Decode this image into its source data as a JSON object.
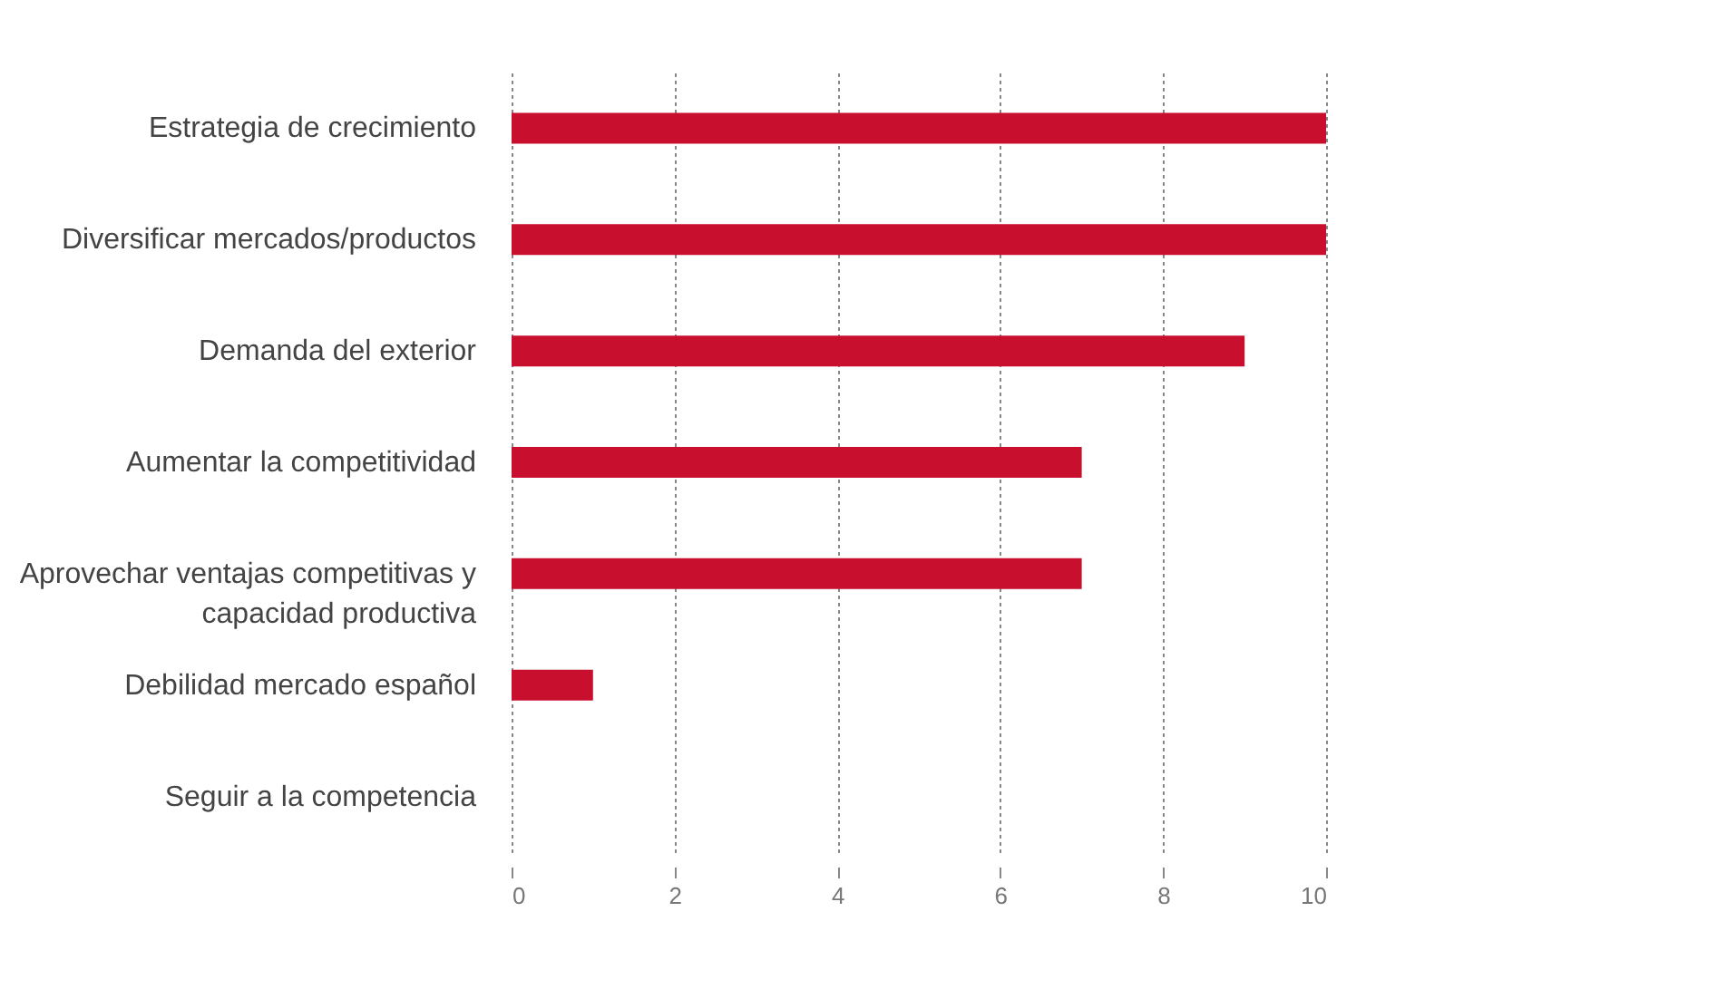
{
  "chart_data": {
    "type": "bar",
    "orientation": "horizontal",
    "categories": [
      "Estrategia de crecimiento",
      "Diversificar mercados/productos",
      "Demanda del exterior",
      "Aumentar la competitividad",
      "Aprovechar ventajas competitivas y capacidad productiva",
      "Debilidad mercado español",
      "Seguir a la competencia"
    ],
    "values": [
      10,
      10,
      9,
      7,
      7,
      1,
      0
    ],
    "color": "#c8102e",
    "xlim": [
      0,
      10
    ],
    "xticks": [
      0,
      2,
      4,
      6,
      8,
      10
    ],
    "grid": "x"
  }
}
